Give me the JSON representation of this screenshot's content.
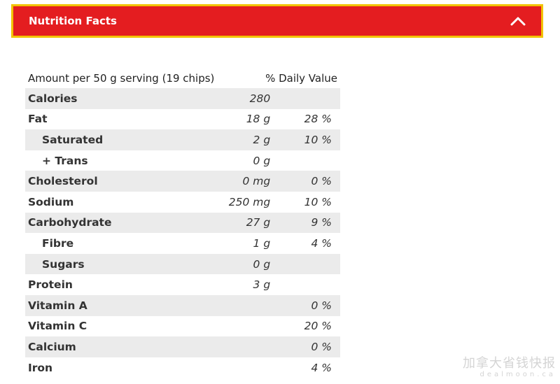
{
  "accordion": {
    "title": "Nutrition Facts",
    "toggle_icon": "chevron-up-icon",
    "bg_color": "#e41d20",
    "border_color": "#f2c200"
  },
  "table": {
    "header": {
      "serving": "Amount per 50 g serving (19 chips)",
      "daily_value": "% Daily Value"
    },
    "rows": [
      {
        "name": "Calories",
        "amount": "280",
        "dv": "",
        "sub": false
      },
      {
        "name": "Fat",
        "amount": "18 g",
        "dv": "28 %",
        "sub": false
      },
      {
        "name": "Saturated",
        "amount": "2 g",
        "dv": "10 %",
        "sub": true
      },
      {
        "name": "+ Trans",
        "amount": "0 g",
        "dv": "",
        "sub": true
      },
      {
        "name": "Cholesterol",
        "amount": "0 mg",
        "dv": "0 %",
        "sub": false
      },
      {
        "name": "Sodium",
        "amount": "250 mg",
        "dv": "10 %",
        "sub": false
      },
      {
        "name": "Carbohydrate",
        "amount": "27 g",
        "dv": "9 %",
        "sub": false
      },
      {
        "name": "Fibre",
        "amount": "1 g",
        "dv": "4 %",
        "sub": true
      },
      {
        "name": "Sugars",
        "amount": "0 g",
        "dv": "",
        "sub": true
      },
      {
        "name": "Protein",
        "amount": "3 g",
        "dv": "",
        "sub": false
      },
      {
        "name": "Vitamin A",
        "amount": "",
        "dv": "0 %",
        "sub": false
      },
      {
        "name": "Vitamin C",
        "amount": "",
        "dv": "20 %",
        "sub": false
      },
      {
        "name": "Calcium",
        "amount": "",
        "dv": "0 %",
        "sub": false
      },
      {
        "name": "Iron",
        "amount": "",
        "dv": "4 %",
        "sub": false
      }
    ]
  },
  "watermark": {
    "line1": "加拿大省钱快报",
    "line2": "dealmoon.ca"
  }
}
